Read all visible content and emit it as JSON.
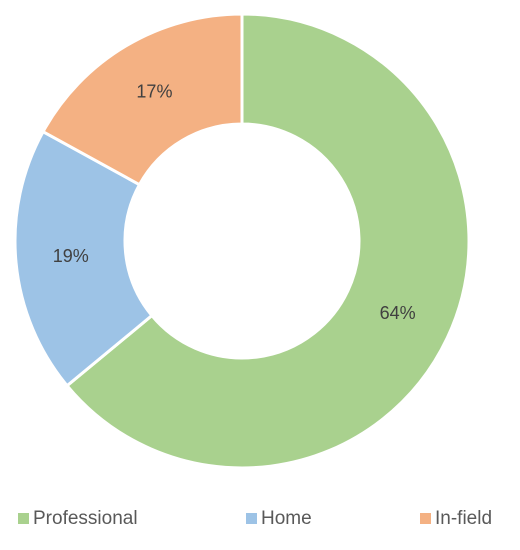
{
  "chart_data": {
    "type": "donut",
    "categories": [
      "Professional",
      "Home",
      "In-field"
    ],
    "values": [
      64,
      19,
      17
    ],
    "value_labels": [
      "64%",
      "19%",
      "17%"
    ],
    "colors": [
      "#a9d18e",
      "#9dc3e6",
      "#f4b183"
    ],
    "legend": "bottom"
  }
}
